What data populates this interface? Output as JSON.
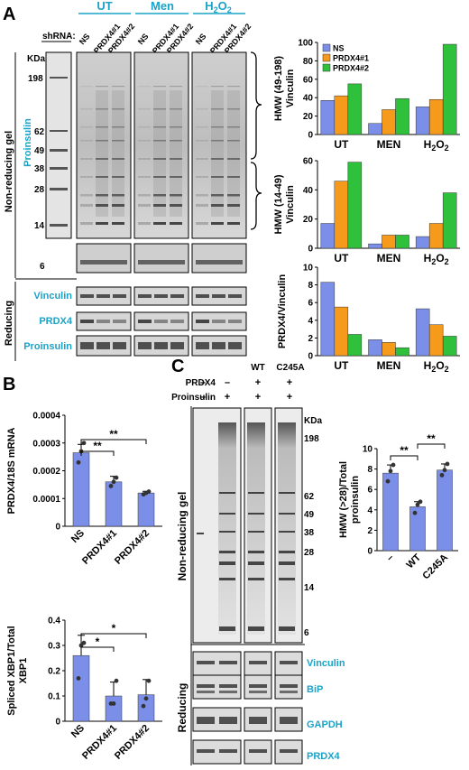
{
  "panels": {
    "A": "A",
    "B": "B",
    "C": "C"
  },
  "colors": {
    "ns": "#7b8fe8",
    "prdx4_1": "#f59a1b",
    "prdx4_2": "#2fc03c",
    "bar_b": "#7b8fe8",
    "accent": "#1aa3c8"
  },
  "panel_a": {
    "treatments": [
      "UT",
      "Men",
      "H2O2"
    ],
    "shrna_label": "shRNA:",
    "lanes": [
      "NS",
      "PRDX4#1",
      "PRDX4#2"
    ],
    "kda_label": "KDa",
    "markers": [
      "198",
      "62",
      "49",
      "38",
      "28",
      "14"
    ],
    "marker_small": "6",
    "side_nonreducing": "Non-reducing gel",
    "side_proinsulin": "Proinsulin",
    "side_reducing": "Reducing",
    "reducing_rows": [
      "Vinculin",
      "PRDX4",
      "Proinsulin"
    ]
  },
  "panel_c": {
    "top_labels": [
      "WT",
      "C245A"
    ],
    "row_labels": [
      "PRDX4",
      "Proinsulin"
    ],
    "signs_prdx4": [
      "–",
      "–",
      "+",
      "+"
    ],
    "signs_proinsulin": [
      "–",
      "+",
      "+",
      "+"
    ],
    "kda_label": "KDa",
    "markers": [
      "198",
      "62",
      "49",
      "38",
      "28",
      "14",
      "6"
    ],
    "side_nonreducing": "Non-reducing gel",
    "side_reducing": "Reducing",
    "reducing_rows": [
      "Vinculin",
      "BiP",
      "GAPDH",
      "PRDX4"
    ]
  },
  "chart_data": [
    {
      "type": "bar",
      "categories": [
        "UT",
        "MEN",
        "H2O2"
      ],
      "series": [
        {
          "name": "NS",
          "values": [
            37,
            12,
            30
          ]
        },
        {
          "name": "PRDX4#1",
          "values": [
            42,
            27,
            38
          ]
        },
        {
          "name": "PRDX4#2",
          "values": [
            55,
            39,
            98
          ]
        }
      ],
      "ylabel": "HMW (49-198) Vinculin",
      "ylim": [
        0,
        100
      ],
      "yticks": [
        0,
        20,
        40,
        60,
        80,
        100
      ],
      "legend": "top-left"
    },
    {
      "type": "bar",
      "categories": [
        "UT",
        "MEN",
        "H2O2"
      ],
      "series": [
        {
          "name": "NS",
          "values": [
            17,
            3,
            8
          ]
        },
        {
          "name": "PRDX4#1",
          "values": [
            46,
            9,
            17
          ]
        },
        {
          "name": "PRDX4#2",
          "values": [
            59,
            9,
            38
          ]
        }
      ],
      "ylabel": "HMW (14-49) Vinculin",
      "ylim": [
        0,
        60
      ],
      "yticks": [
        0,
        20,
        40,
        60
      ]
    },
    {
      "type": "bar",
      "categories": [
        "UT",
        "MEN",
        "H2O2"
      ],
      "series": [
        {
          "name": "NS",
          "values": [
            8.3,
            1.8,
            5.3
          ]
        },
        {
          "name": "PRDX4#1",
          "values": [
            5.5,
            1.5,
            3.5
          ]
        },
        {
          "name": "PRDX4#2",
          "values": [
            2.4,
            0.9,
            2.2
          ]
        }
      ],
      "ylabel": "PRDX4/Vinculin",
      "ylim": [
        0,
        10
      ],
      "yticks": [
        0,
        2,
        4,
        6,
        8,
        10
      ]
    },
    {
      "type": "bar",
      "categories": [
        "NS",
        "PRDX4#1",
        "PRDX4#2"
      ],
      "values": [
        0.000265,
        0.00016,
        0.00012
      ],
      "errors": [
        3e-05,
        2e-05,
        6e-06
      ],
      "points": [
        [
          0.00023,
          0.00027,
          0.0003
        ],
        [
          0.000145,
          0.00016,
          0.000175
        ],
        [
          0.000115,
          0.00012,
          0.000125
        ]
      ],
      "ylabel": "PRDX4/18S mRNA",
      "ylim": [
        0,
        0.0004
      ],
      "yticks": [
        "0",
        "0.0001",
        "0.0002",
        "0.0003",
        "0.0004"
      ],
      "significance": [
        {
          "from": "NS",
          "to": "PRDX4#1",
          "label": "**"
        },
        {
          "from": "NS",
          "to": "PRDX4#2",
          "label": "**"
        }
      ]
    },
    {
      "type": "bar",
      "categories": [
        "NS",
        "PRDX4#1",
        "PRDX4#2"
      ],
      "values": [
        0.26,
        0.1,
        0.105
      ],
      "errors": [
        0.08,
        0.055,
        0.06
      ],
      "points": [
        [
          0.17,
          0.3,
          0.31
        ],
        [
          0.07,
          0.07,
          0.16
        ],
        [
          0.06,
          0.09,
          0.16
        ]
      ],
      "ylabel": "Spliced XBP1/Total XBP1",
      "ylim": [
        0,
        0.4
      ],
      "yticks": [
        "0",
        "0.1",
        "0.2",
        "0.3",
        "0.4"
      ],
      "significance": [
        {
          "from": "NS",
          "to": "PRDX4#1",
          "label": "*"
        },
        {
          "from": "NS",
          "to": "PRDX4#2",
          "label": "*"
        }
      ]
    },
    {
      "type": "bar",
      "categories": [
        "–",
        "WT",
        "C245A"
      ],
      "values": [
        7.6,
        4.3,
        7.9
      ],
      "errors": [
        0.8,
        0.5,
        0.6
      ],
      "points": [
        [
          6.8,
          7.8,
          8.4
        ],
        [
          3.7,
          4.5,
          4.8
        ],
        [
          7.4,
          7.9,
          8.5
        ]
      ],
      "ylabel": "HMW (>28)/Total proinsulin",
      "ylim": [
        0,
        10
      ],
      "yticks": [
        "0",
        "2",
        "4",
        "6",
        "8",
        "10"
      ],
      "significance": [
        {
          "from": "–",
          "to": "WT",
          "label": "**"
        },
        {
          "from": "WT",
          "to": "C245A",
          "label": "**"
        }
      ]
    }
  ]
}
